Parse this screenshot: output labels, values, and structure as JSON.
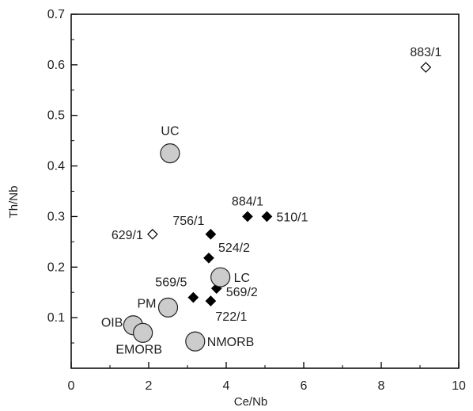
{
  "chart_data": {
    "type": "scatter",
    "xlabel": "Ce/Nb",
    "ylabel": "Th/Nb",
    "xlim": [
      0,
      10
    ],
    "ylim": [
      0,
      0.7
    ],
    "x_ticks": [
      "0",
      "2",
      "4",
      "6",
      "8",
      "10"
    ],
    "y_ticks": [
      "0.1",
      "0.2",
      "0.3",
      "0.4",
      "0.5",
      "0.6",
      "0.7"
    ],
    "grid": false,
    "series": [
      {
        "marker": "filled-diamond",
        "color": "#000000",
        "points": [
          {
            "label": "884/1",
            "x": 4.55,
            "y": 0.3
          },
          {
            "label": "510/1",
            "x": 5.05,
            "y": 0.3
          },
          {
            "label": "756/1",
            "x": 3.6,
            "y": 0.265
          },
          {
            "label": "524/2",
            "x": 3.55,
            "y": 0.218
          },
          {
            "label": "569/5",
            "x": 3.15,
            "y": 0.14
          },
          {
            "label": "569/2",
            "x": 3.75,
            "y": 0.158
          },
          {
            "label": "722/1",
            "x": 3.6,
            "y": 0.133
          }
        ]
      },
      {
        "marker": "open-diamond",
        "color": "#000000",
        "points": [
          {
            "label": "629/1",
            "x": 2.1,
            "y": 0.265
          },
          {
            "label": "883/1",
            "x": 9.15,
            "y": 0.595
          }
        ]
      },
      {
        "marker": "large-grey-circle",
        "color": "#cccccc",
        "points": [
          {
            "label": "UC",
            "x": 2.55,
            "y": 0.425
          },
          {
            "label": "LC",
            "x": 3.85,
            "y": 0.18
          },
          {
            "label": "PM",
            "x": 2.5,
            "y": 0.12
          },
          {
            "label": "OIB",
            "x": 1.6,
            "y": 0.085
          },
          {
            "label": "EMORB",
            "x": 1.85,
            "y": 0.07
          },
          {
            "label": "NMORB",
            "x": 3.2,
            "y": 0.053
          }
        ]
      }
    ]
  }
}
